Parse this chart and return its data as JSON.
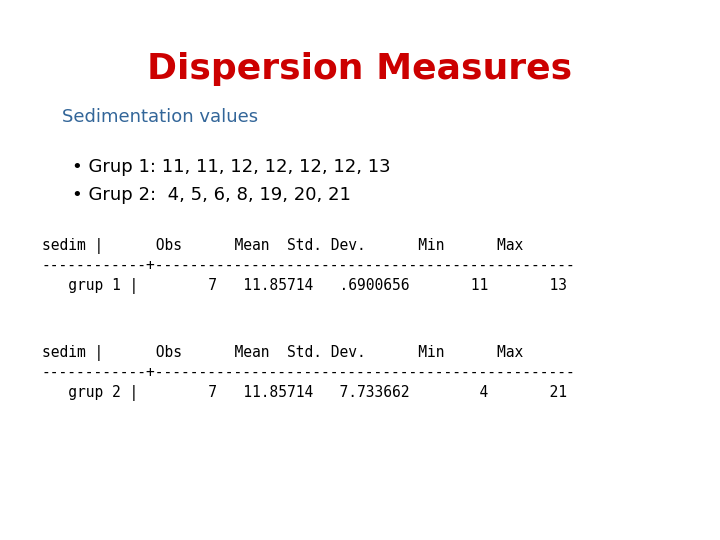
{
  "title": "Dispersion Measures",
  "title_color": "#cc0000",
  "title_fontsize": 26,
  "subtitle": "Sedimentation values",
  "subtitle_color": "#336699",
  "subtitle_fontsize": 13,
  "bullet1": "• Grup 1: 11, 11, 12, 12, 12, 12, 13",
  "bullet2": "• Grup 2:  4, 5, 6, 8, 19, 20, 21",
  "bullet_fontsize": 13,
  "bullet_color": "#000000",
  "table_header": "sedim |      Obs      Mean  Std. Dev.      Min      Max",
  "table_divider": "------------+------------------------------------------------",
  "table_row1": "   grup 1 |        7   11.85714   .6900656       11       13",
  "table_row2": "   grup 2 |        7   11.85714   7.733662        4       21",
  "table_fontsize": 10.5,
  "table_color": "#000000",
  "bg_color": "#ffffff"
}
